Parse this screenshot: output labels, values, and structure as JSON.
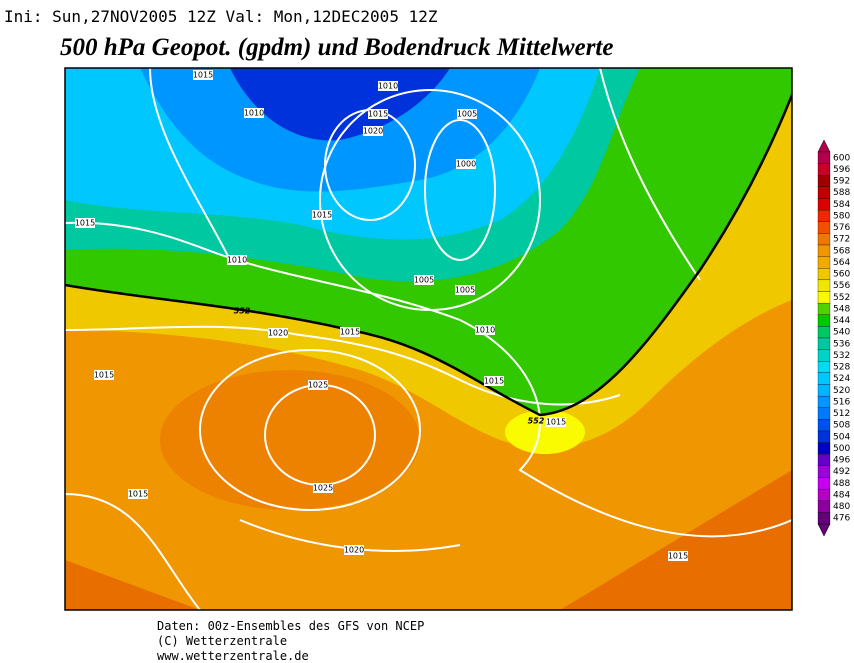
{
  "header": {
    "run": "Ini: Sun,27NOV2005  12Z Val: Mon,12DEC2005  12Z",
    "title": "500 hPa Geopot. (gpdm) und Bodendruck Mittelwerte"
  },
  "map": {
    "isobar_labels": [
      "1015",
      "1010",
      "1010",
      "1015",
      "1005",
      "1020",
      "1000",
      "1015",
      "1015",
      "1010",
      "1005",
      "1005",
      "1010",
      "1015",
      "1020",
      "1015",
      "1025",
      "1015",
      "1015",
      "1025",
      "1015",
      "1020",
      "1015"
    ],
    "contour_labels": [
      "552",
      "552"
    ]
  },
  "colorbar": {
    "labels": [
      600,
      596,
      592,
      588,
      584,
      580,
      576,
      572,
      568,
      564,
      560,
      556,
      552,
      548,
      544,
      540,
      536,
      532,
      528,
      524,
      520,
      516,
      512,
      508,
      504,
      500,
      496,
      492,
      488,
      484,
      480,
      476
    ],
    "colors": [
      "#b4004b",
      "#c80028",
      "#a00000",
      "#c00000",
      "#dc0000",
      "#f02800",
      "#f05000",
      "#f07800",
      "#f09600",
      "#f0aa00",
      "#f0c800",
      "#f0e600",
      "#fafa00",
      "#50d200",
      "#00c800",
      "#00c864",
      "#00c8a0",
      "#00d2c8",
      "#00dcf0",
      "#00c8ff",
      "#00b4ff",
      "#0096ff",
      "#0078ff",
      "#0050f0",
      "#0032dc",
      "#0000c8",
      "#6400c8",
      "#a000dc",
      "#c800f0",
      "#b400c8",
      "#8c00a0",
      "#640078"
    ]
  },
  "footer": {
    "lines": [
      "Daten: 00z-Ensembles des GFS von NCEP",
      "(C) Wetterzentrale",
      "www.wetterzentrale.de"
    ]
  }
}
